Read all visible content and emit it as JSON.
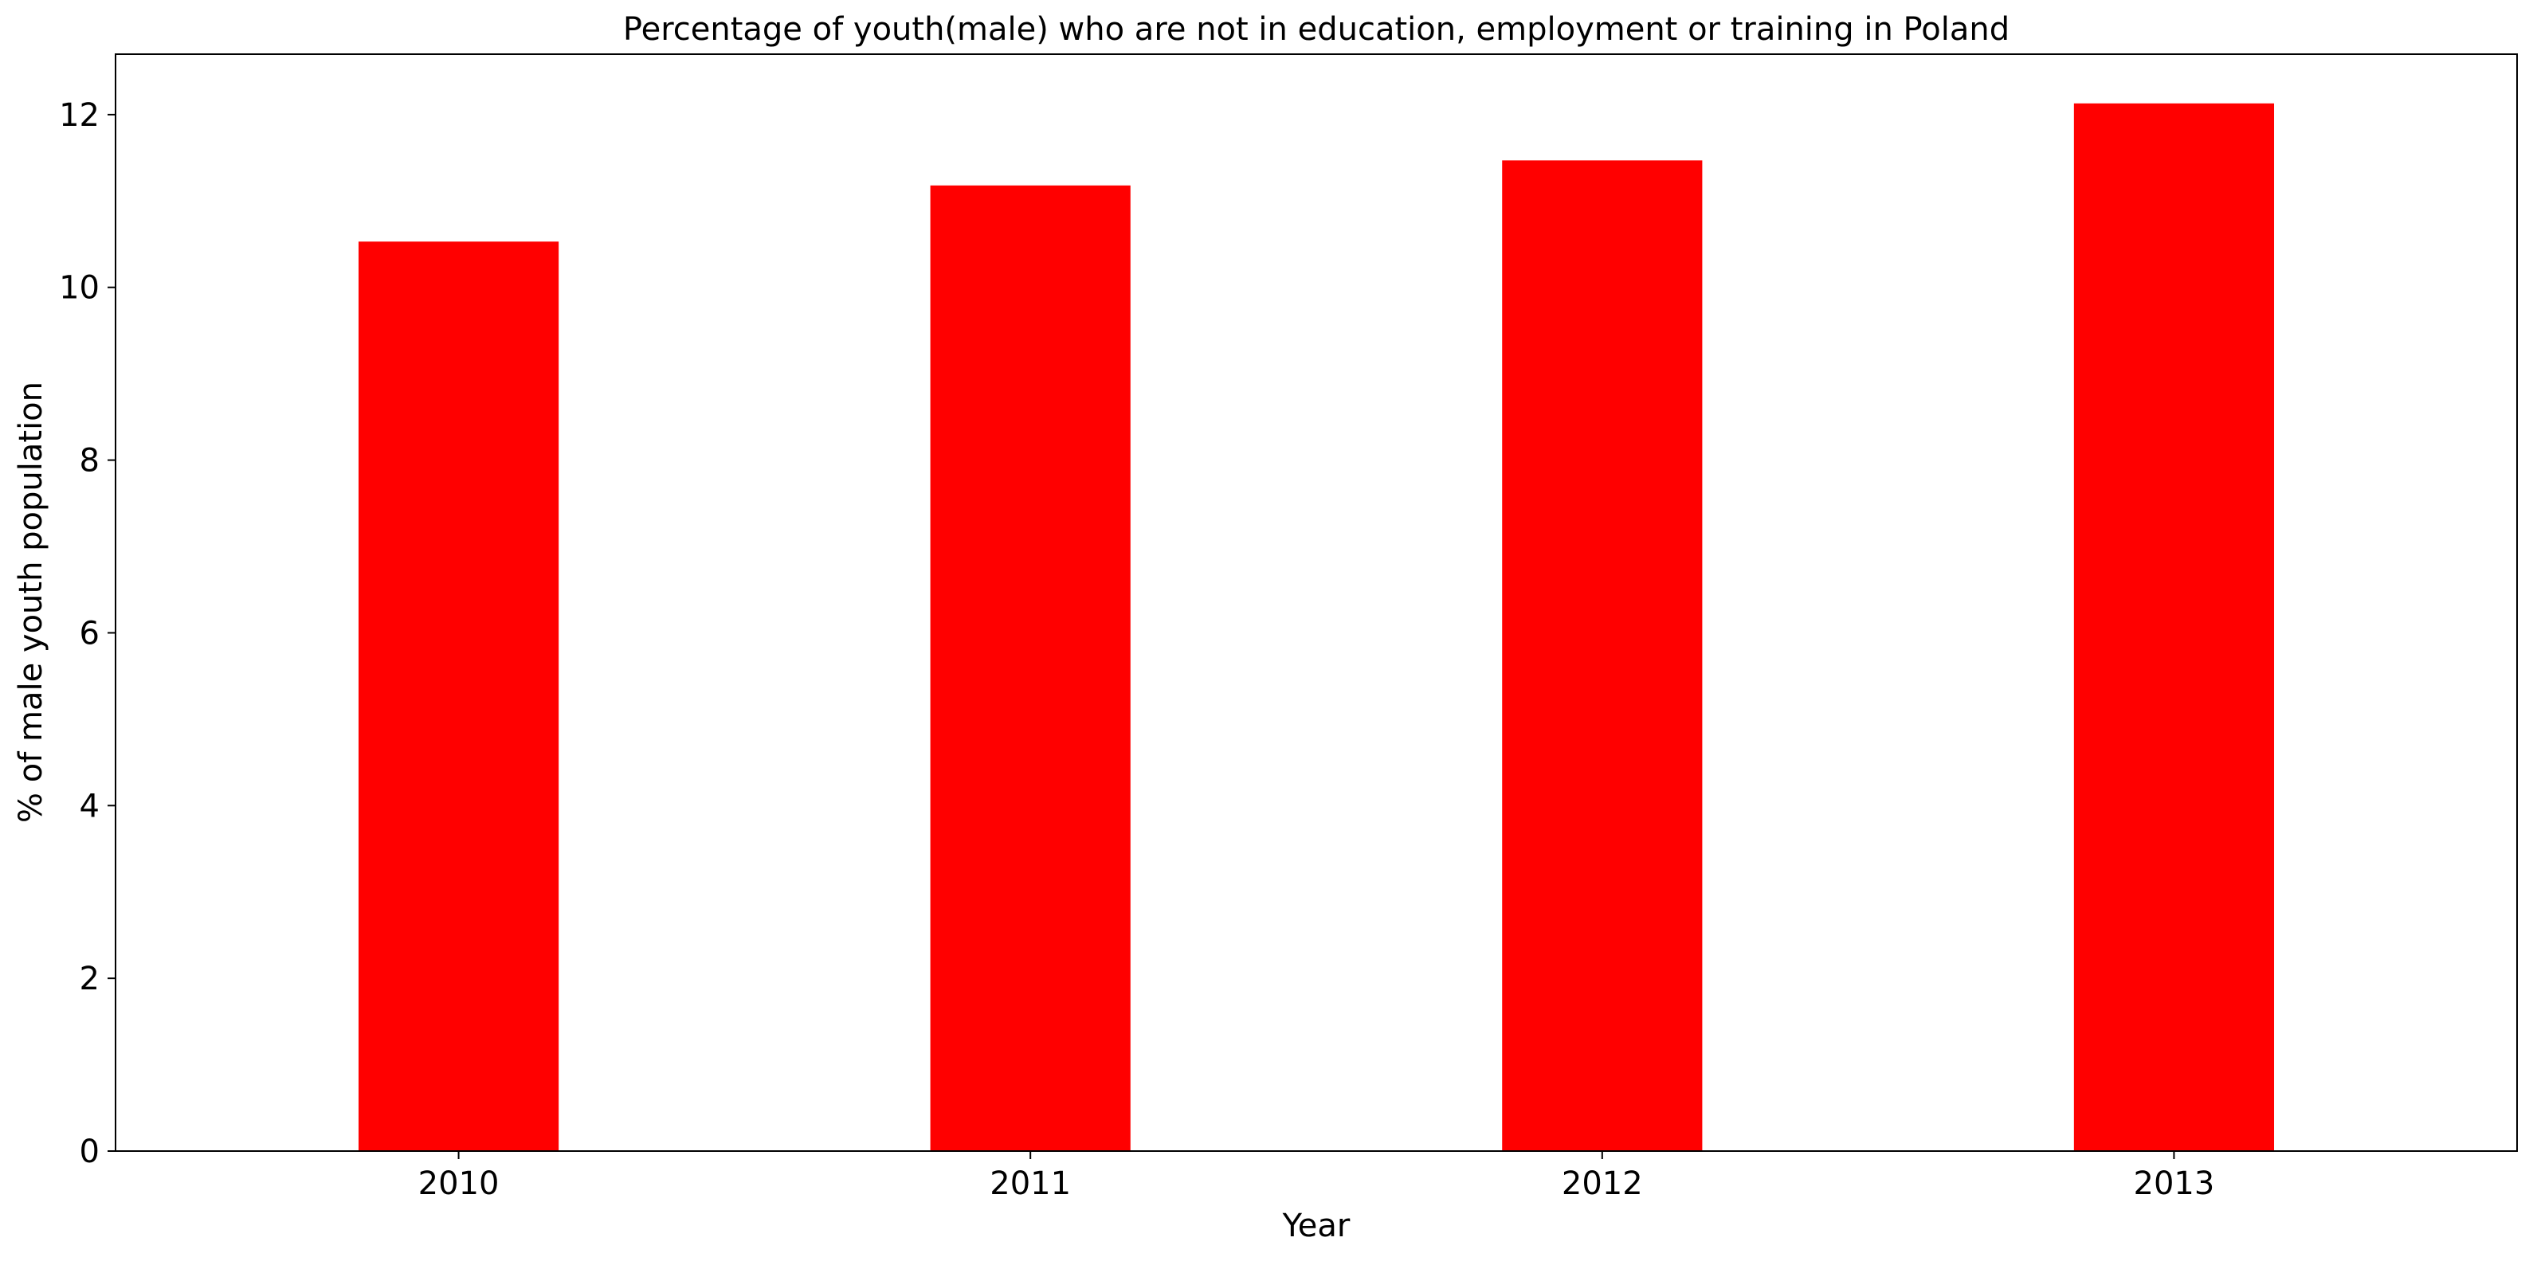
{
  "chart_data": {
    "type": "bar",
    "title": "Percentage of youth(male) who are not in education, employment or training in Poland",
    "xlabel": "Year",
    "ylabel": "% of male youth population",
    "categories": [
      "2010",
      "2011",
      "2012",
      "2013"
    ],
    "values": [
      10.53,
      11.18,
      11.47,
      12.13
    ],
    "ylim": [
      0,
      12.7
    ],
    "yticks": [
      0,
      2,
      4,
      6,
      8,
      10,
      12
    ],
    "bar_color": "#ff0000",
    "grid": false,
    "legend": "none"
  }
}
